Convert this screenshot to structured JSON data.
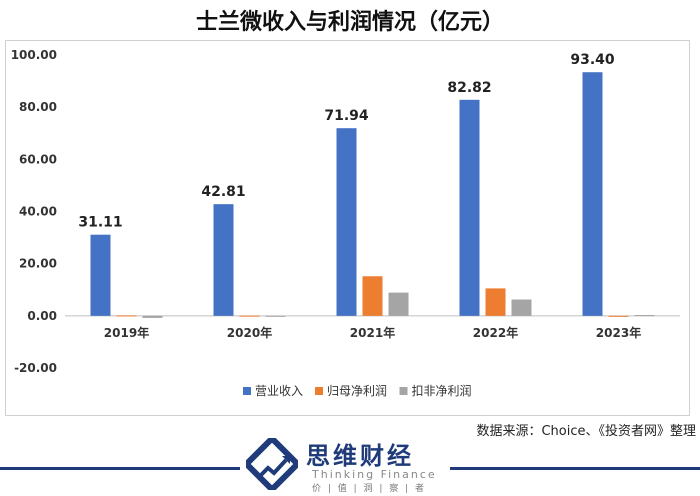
{
  "title": "士兰微收入与利润情况（亿元）",
  "source_note": "数据来源：Choice、《投资者网》整理",
  "branding": {
    "name_cn": "思维财经",
    "name_en": "Thinking Finance",
    "tagline": "价 | 值 | 洞 | 察 | 者",
    "primary_color": "#1f3b7a"
  },
  "chart_data": {
    "type": "bar",
    "categories": [
      "2019年",
      "2020年",
      "2021年",
      "2022年",
      "2023年"
    ],
    "series": [
      {
        "name": "营业收入",
        "color": "#4472c4",
        "values": [
          31.11,
          42.81,
          71.94,
          82.82,
          93.4
        ]
      },
      {
        "name": "归母净利润",
        "color": "#ed7d31",
        "values": [
          0.15,
          0.07,
          15.18,
          10.52,
          -0.36
        ]
      },
      {
        "name": "扣非净利润",
        "color": "#a5a5a5",
        "values": [
          -0.8,
          -0.3,
          8.9,
          6.25,
          0.3
        ]
      }
    ],
    "data_labels": [
      "31.11",
      "42.81",
      "71.94",
      "82.82",
      "93.40"
    ],
    "yticks": [
      "100.00",
      "80.00",
      "60.00",
      "40.00",
      "20.00",
      "0.00",
      "-20.00"
    ],
    "ylim": [
      -20,
      100
    ],
    "grid": false,
    "legend_position": "bottom"
  }
}
